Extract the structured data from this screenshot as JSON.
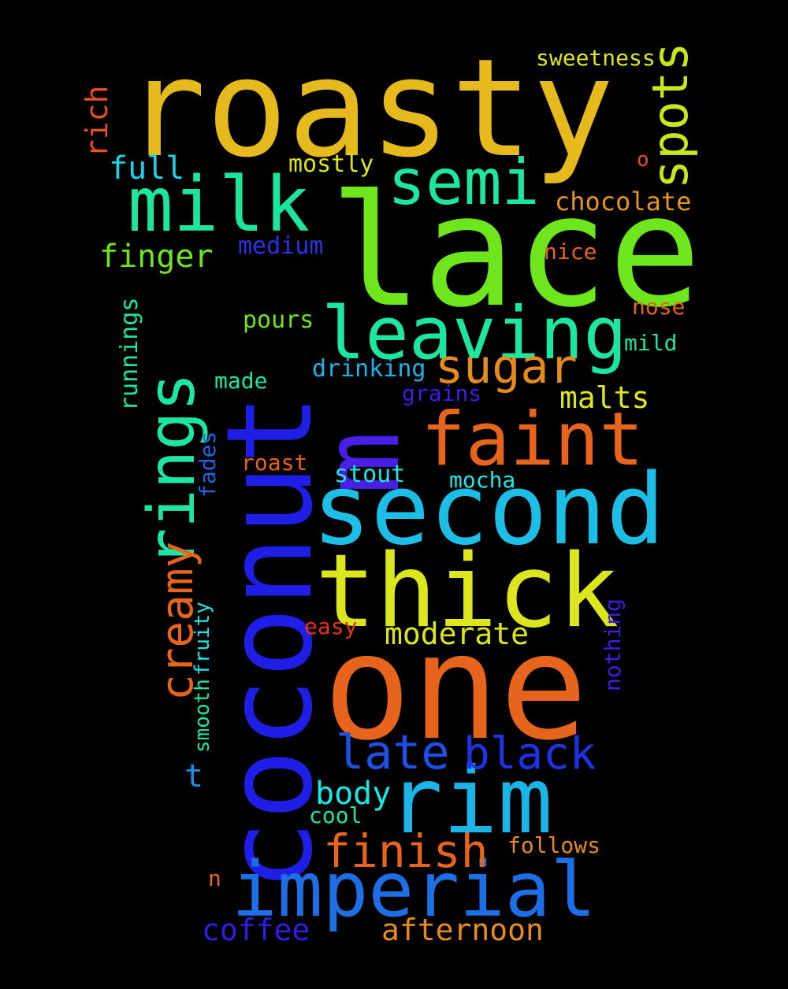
{
  "words": [
    {
      "text": "roasty",
      "color": "#e6b91c"
    },
    {
      "text": "lace",
      "color": "#6ee61c"
    },
    {
      "text": "coconut",
      "color": "#1e1ee6"
    },
    {
      "text": "one",
      "color": "#e6641c"
    },
    {
      "text": "second",
      "color": "#1cbee6"
    },
    {
      "text": "thick",
      "color": "#dce61c"
    },
    {
      "text": "rim",
      "color": "#1ab4e6"
    },
    {
      "text": "milk",
      "color": "#1ce69c"
    },
    {
      "text": "m",
      "color": "#4b1ee6"
    },
    {
      "text": "faint",
      "color": "#e6641c"
    },
    {
      "text": "leaving",
      "color": "#1ce6a0"
    },
    {
      "text": "rings",
      "color": "#1ce6a0"
    },
    {
      "text": "semi",
      "color": "#1ce6a0"
    },
    {
      "text": "imperial",
      "color": "#1e6ee6"
    },
    {
      "text": "sugar",
      "color": "#e68c1c"
    },
    {
      "text": "spots",
      "color": "#c8e61c"
    },
    {
      "text": "finish",
      "color": "#e6641c"
    },
    {
      "text": "late",
      "color": "#1e50e6"
    },
    {
      "text": "black",
      "color": "#1e32e6"
    },
    {
      "text": "creamy",
      "color": "#e6641c"
    },
    {
      "text": "malts",
      "color": "#dce61c"
    },
    {
      "text": "moderate",
      "color": "#dce61c"
    },
    {
      "text": "finger",
      "color": "#6ee61c"
    },
    {
      "text": "coffee",
      "color": "#2d1ee6"
    },
    {
      "text": "afternoon",
      "color": "#e68c1c"
    },
    {
      "text": "body",
      "color": "#1ce6e6"
    },
    {
      "text": "full",
      "color": "#1cd2e6"
    },
    {
      "text": "rich",
      "color": "#e6501c"
    },
    {
      "text": "mostly",
      "color": "#dce61c"
    },
    {
      "text": "chocolate",
      "color": "#e6961c"
    },
    {
      "text": "medium",
      "color": "#2d32e6"
    },
    {
      "text": "nice",
      "color": "#e6641c"
    },
    {
      "text": "pours",
      "color": "#6ee61c"
    },
    {
      "text": "drinking",
      "color": "#1cb4e6"
    },
    {
      "text": "nose",
      "color": "#e6641c"
    },
    {
      "text": "mild",
      "color": "#1ce6a0"
    },
    {
      "text": "made",
      "color": "#1ce6a0"
    },
    {
      "text": "grains",
      "color": "#3c1ee6"
    },
    {
      "text": "runnings",
      "color": "#1ce6a0"
    },
    {
      "text": "sweetness",
      "color": "#dce61c"
    },
    {
      "text": "stout",
      "color": "#1ce6e6"
    },
    {
      "text": "mocha",
      "color": "#1ce6e6"
    },
    {
      "text": "roast",
      "color": "#e6641c"
    },
    {
      "text": "fades",
      "color": "#1e64e6"
    },
    {
      "text": "smooth",
      "color": "#1ce6a0"
    },
    {
      "text": "fruity",
      "color": "#1ce6e6"
    },
    {
      "text": "nothing",
      "color": "#3c1ee6"
    },
    {
      "text": "easy",
      "color": "#e6321c"
    },
    {
      "text": "cool",
      "color": "#1ce6a0"
    },
    {
      "text": "follows",
      "color": "#e68c1c"
    },
    {
      "text": "o",
      "color": "#e6501c"
    },
    {
      "text": "t",
      "color": "#1e8ce6"
    },
    {
      "text": "n",
      "color": "#e6641c"
    }
  ]
}
